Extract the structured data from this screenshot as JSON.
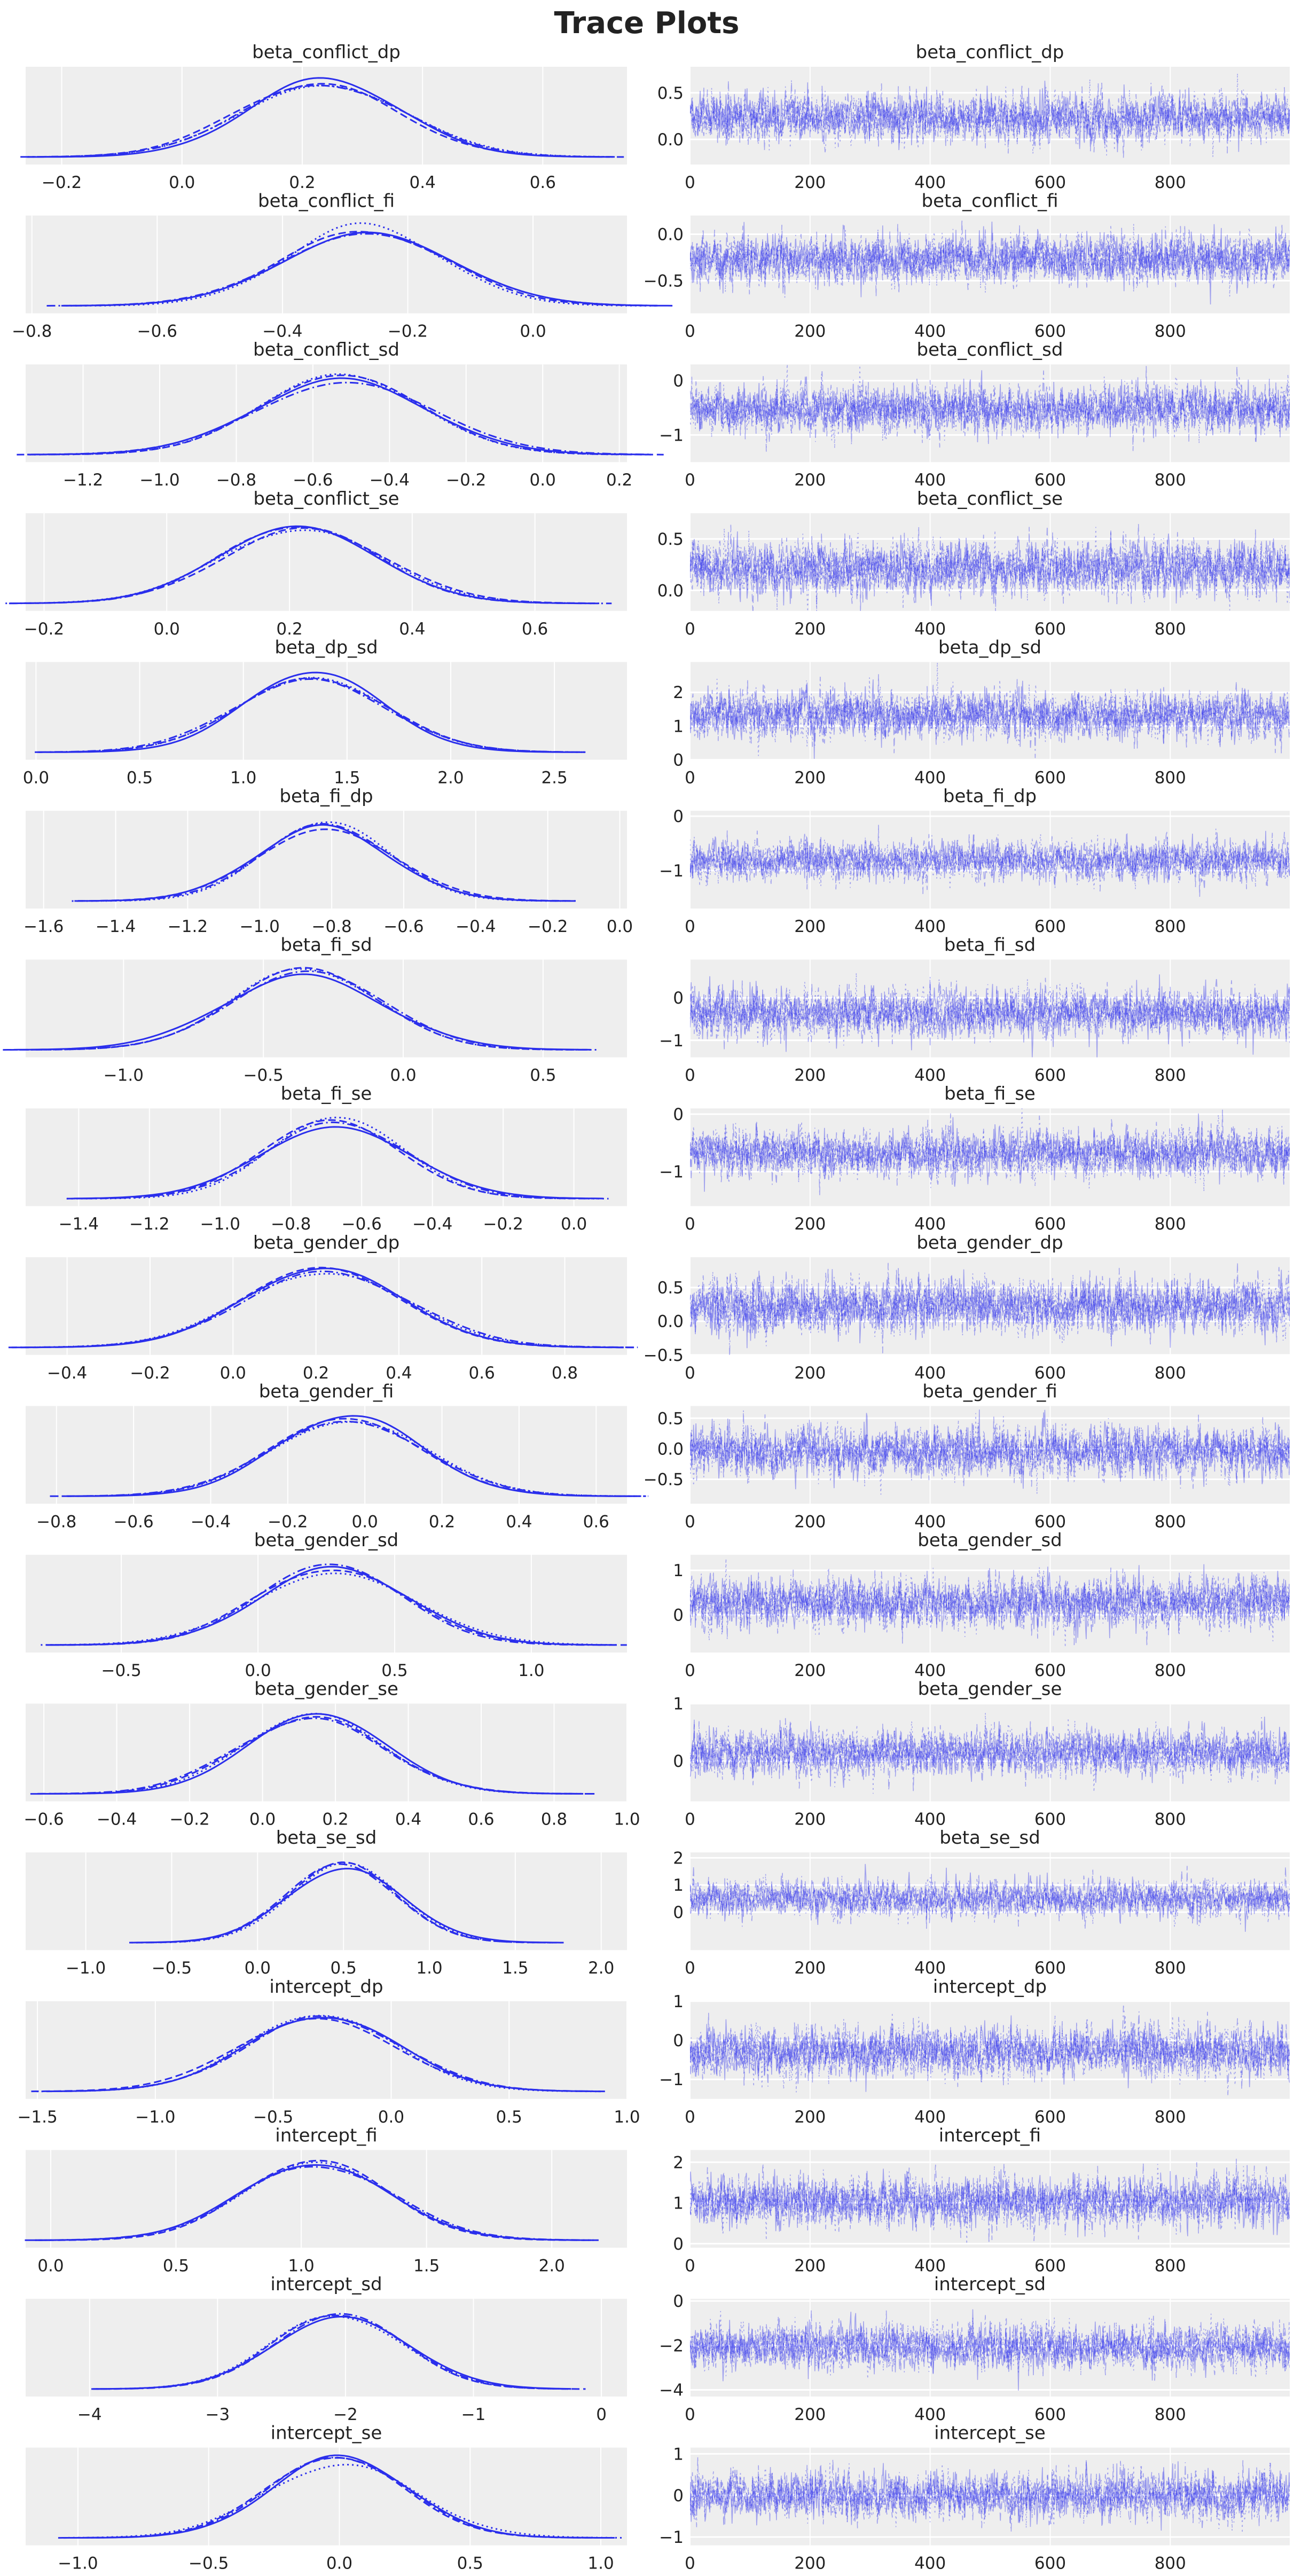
{
  "chart_data": {
    "type": "line",
    "title": "Trace Plots",
    "colors": {
      "line": "#2a2eec",
      "panel_bg": "#eeeeee",
      "grid": "#ffffff"
    },
    "chains": 4,
    "draws": 1000,
    "trace_xticks": [
      0,
      200,
      400,
      600,
      800
    ],
    "trace_xlim": [
      0,
      999
    ],
    "grid": true,
    "params": [
      {
        "name": "beta_conflict_dp",
        "mean": 0.23,
        "sd": 0.13,
        "kde_xticks": [
          -0.2,
          0.0,
          0.2,
          0.4,
          0.6
        ],
        "kde_xtick_labels": [
          "−0.2",
          "0.0",
          "0.2",
          "0.4",
          "0.6"
        ],
        "kde_xlim": [
          -0.26,
          0.74
        ],
        "trace_yticks": [
          0.0,
          0.5
        ],
        "trace_ytick_labels": [
          "0.0",
          "0.5"
        ],
        "trace_ylim": [
          -0.27,
          0.78
        ]
      },
      {
        "name": "beta_conflict_fi",
        "mean": -0.27,
        "sd": 0.13,
        "kde_xticks": [
          -0.8,
          -0.6,
          -0.4,
          -0.2,
          0.0
        ],
        "kde_xtick_labels": [
          "−0.8",
          "−0.6",
          "−0.4",
          "−0.2",
          "0.0"
        ],
        "kde_xlim": [
          -0.81,
          0.15
        ],
        "trace_yticks": [
          -0.5,
          0.0
        ],
        "trace_ytick_labels": [
          "−0.5",
          "0.0"
        ],
        "trace_ylim": [
          -0.85,
          0.2
        ]
      },
      {
        "name": "beta_conflict_sd",
        "mean": -0.52,
        "sd": 0.22,
        "kde_xticks": [
          -1.2,
          -1.0,
          -0.8,
          -0.6,
          -0.4,
          -0.2,
          0.0,
          0.2
        ],
        "kde_xtick_labels": [
          "−1.2",
          "−1.0",
          "−0.8",
          "−0.6",
          "−0.4",
          "−0.2",
          "0.0",
          "0.2"
        ],
        "kde_xlim": [
          -1.35,
          0.22
        ],
        "trace_yticks": [
          -1,
          0
        ],
        "trace_ytick_labels": [
          "−1",
          "0"
        ],
        "trace_ylim": [
          -1.5,
          0.3
        ]
      },
      {
        "name": "beta_conflict_se",
        "mean": 0.22,
        "sd": 0.13,
        "kde_xticks": [
          -0.2,
          0.0,
          0.2,
          0.4,
          0.6
        ],
        "kde_xtick_labels": [
          "−0.2",
          "0.0",
          "0.2",
          "0.4",
          "0.6"
        ],
        "kde_xlim": [
          -0.23,
          0.75
        ],
        "trace_yticks": [
          0.0,
          0.5
        ],
        "trace_ytick_labels": [
          "0.0",
          "0.5"
        ],
        "trace_ylim": [
          -0.2,
          0.75
        ]
      },
      {
        "name": "beta_dp_sd",
        "mean": 1.33,
        "sd": 0.35,
        "kde_xticks": [
          0.0,
          0.5,
          1.0,
          1.5,
          2.0,
          2.5
        ],
        "kde_xtick_labels": [
          "0.0",
          "0.5",
          "1.0",
          "1.5",
          "2.0",
          "2.5"
        ],
        "kde_xlim": [
          -0.05,
          2.85
        ],
        "trace_yticks": [
          0,
          1,
          2
        ],
        "trace_ytick_labels": [
          "0",
          "1",
          "2"
        ],
        "trace_ylim": [
          0,
          2.9
        ]
      },
      {
        "name": "beta_fi_dp",
        "mean": -0.82,
        "sd": 0.18,
        "kde_xticks": [
          -1.6,
          -1.4,
          -1.2,
          -1.0,
          -0.8,
          -0.6,
          -0.4,
          -0.2,
          0.0
        ],
        "kde_xtick_labels": [
          "−1.6",
          "−1.4",
          "−1.2",
          "−1.0",
          "−0.8",
          "−0.6",
          "−0.4",
          "−0.2",
          "0.0"
        ],
        "kde_xlim": [
          -1.65,
          0.02
        ],
        "trace_yticks": [
          -1,
          0
        ],
        "trace_ytick_labels": [
          "−1",
          "0"
        ],
        "trace_ylim": [
          -1.7,
          0.1
        ]
      },
      {
        "name": "beta_fi_sd",
        "mean": -0.35,
        "sd": 0.28,
        "kde_xticks": [
          -1.0,
          -0.5,
          0.0,
          0.5
        ],
        "kde_xtick_labels": [
          "−1.0",
          "−0.5",
          "0.0",
          "0.5"
        ],
        "kde_xlim": [
          -1.35,
          0.8
        ],
        "trace_yticks": [
          -1,
          0
        ],
        "trace_ytick_labels": [
          "−1",
          "0"
        ],
        "trace_ylim": [
          -1.4,
          0.9
        ]
      },
      {
        "name": "beta_fi_se",
        "mean": -0.68,
        "sd": 0.2,
        "kde_xticks": [
          -1.4,
          -1.2,
          -1.0,
          -0.8,
          -0.6,
          -0.4,
          -0.2,
          0.0
        ],
        "kde_xtick_labels": [
          "−1.4",
          "−1.2",
          "−1.0",
          "−0.8",
          "−0.6",
          "−0.4",
          "−0.2",
          "0.0"
        ],
        "kde_xlim": [
          -1.55,
          0.15
        ],
        "trace_yticks": [
          -1,
          0
        ],
        "trace_ytick_labels": [
          "−1",
          "0"
        ],
        "trace_ylim": [
          -1.6,
          0.1
        ]
      },
      {
        "name": "beta_gender_dp",
        "mean": 0.22,
        "sd": 0.2,
        "kde_xticks": [
          -0.4,
          -0.2,
          0.0,
          0.2,
          0.4,
          0.6,
          0.8
        ],
        "kde_xtick_labels": [
          "−0.4",
          "−0.2",
          "0.0",
          "0.2",
          "0.4",
          "0.6",
          "0.8"
        ],
        "kde_xlim": [
          -0.5,
          0.95
        ],
        "trace_yticks": [
          -0.5,
          0.0,
          0.5
        ],
        "trace_ytick_labels": [
          "−0.5",
          "0.0",
          "0.5"
        ],
        "trace_ylim": [
          -0.5,
          0.95
        ]
      },
      {
        "name": "beta_gender_fi",
        "mean": -0.04,
        "sd": 0.2,
        "kde_xticks": [
          -0.8,
          -0.6,
          -0.4,
          -0.2,
          0.0,
          0.2,
          0.4,
          0.6
        ],
        "kde_xtick_labels": [
          "−0.8",
          "−0.6",
          "−0.4",
          "−0.2",
          "0.0",
          "0.2",
          "0.4",
          "0.6"
        ],
        "kde_xlim": [
          -0.88,
          0.68
        ],
        "trace_yticks": [
          -0.5,
          0.0,
          0.5
        ],
        "trace_ytick_labels": [
          "−0.5",
          "0.0",
          "0.5"
        ],
        "trace_ylim": [
          -0.9,
          0.7
        ]
      },
      {
        "name": "beta_gender_sd",
        "mean": 0.27,
        "sd": 0.28,
        "kde_xticks": [
          -0.5,
          0.0,
          0.5,
          1.0
        ],
        "kde_xtick_labels": [
          "−0.5",
          "0.0",
          "0.5",
          "1.0"
        ],
        "kde_xlim": [
          -0.85,
          1.35
        ],
        "trace_yticks": [
          0,
          1
        ],
        "trace_ytick_labels": [
          "0",
          "1"
        ],
        "trace_ylim": [
          -0.85,
          1.35
        ]
      },
      {
        "name": "beta_gender_se",
        "mean": 0.14,
        "sd": 0.2,
        "kde_xticks": [
          -0.6,
          -0.4,
          -0.2,
          0.0,
          0.2,
          0.4,
          0.6,
          0.8,
          1.0
        ],
        "kde_xtick_labels": [
          "−0.6",
          "−0.4",
          "−0.2",
          "0.0",
          "0.2",
          "0.4",
          "0.6",
          "0.8",
          "1.0"
        ],
        "kde_xlim": [
          -0.65,
          1.0
        ],
        "trace_yticks": [
          0,
          1
        ],
        "trace_ytick_labels": [
          "0",
          "1"
        ],
        "trace_ylim": [
          -0.7,
          1.0
        ]
      },
      {
        "name": "beta_se_sd",
        "mean": 0.5,
        "sd": 0.33,
        "kde_xticks": [
          -1.0,
          -0.5,
          0.0,
          0.5,
          1.0,
          1.5,
          2.0
        ],
        "kde_xtick_labels": [
          "−1.0",
          "−0.5",
          "0.0",
          "0.5",
          "1.0",
          "1.5",
          "2.0"
        ],
        "kde_xlim": [
          -1.35,
          2.15
        ],
        "trace_yticks": [
          0,
          1,
          2
        ],
        "trace_ytick_labels": [
          "0",
          "1",
          "2"
        ],
        "trace_ylim": [
          -1.4,
          2.2
        ]
      },
      {
        "name": "intercept_dp",
        "mean": -0.3,
        "sd": 0.32,
        "kde_xticks": [
          -1.5,
          -1.0,
          -0.5,
          0.0,
          0.5,
          1.0
        ],
        "kde_xtick_labels": [
          "−1.5",
          "−1.0",
          "−0.5",
          "0.0",
          "0.5",
          "1.0"
        ],
        "kde_xlim": [
          -1.55,
          1.0
        ],
        "trace_yticks": [
          -1,
          0,
          1
        ],
        "trace_ytick_labels": [
          "−1",
          "0",
          "1"
        ],
        "trace_ylim": [
          -1.5,
          1.0
        ]
      },
      {
        "name": "intercept_fi",
        "mean": 1.05,
        "sd": 0.3,
        "kde_xticks": [
          0.0,
          0.5,
          1.0,
          1.5,
          2.0
        ],
        "kde_xtick_labels": [
          "0.0",
          "0.5",
          "1.0",
          "1.5",
          "2.0"
        ],
        "kde_xlim": [
          -0.1,
          2.3
        ],
        "trace_yticks": [
          0,
          1,
          2
        ],
        "trace_ytick_labels": [
          "0",
          "1",
          "2"
        ],
        "trace_ylim": [
          -0.1,
          2.3
        ]
      },
      {
        "name": "intercept_sd",
        "mean": -2.05,
        "sd": 0.5,
        "kde_xticks": [
          -4,
          -3,
          -2,
          -1,
          0
        ],
        "kde_xtick_labels": [
          "−4",
          "−3",
          "−2",
          "−1",
          "0"
        ],
        "kde_xlim": [
          -4.5,
          0.2
        ],
        "trace_yticks": [
          -4,
          -2,
          0
        ],
        "trace_ytick_labels": [
          "−4",
          "−2",
          "0"
        ],
        "trace_ylim": [
          -4.3,
          0.1
        ]
      },
      {
        "name": "intercept_se",
        "mean": 0.0,
        "sd": 0.28,
        "kde_xticks": [
          -1.0,
          -0.5,
          0.0,
          0.5,
          1.0
        ],
        "kde_xtick_labels": [
          "−1.0",
          "−0.5",
          "0.0",
          "0.5",
          "1.0"
        ],
        "kde_xlim": [
          -1.2,
          1.1
        ],
        "trace_yticks": [
          -1,
          0,
          1
        ],
        "trace_ytick_labels": [
          "−1",
          "0",
          "1"
        ],
        "trace_ylim": [
          -1.2,
          1.15
        ]
      }
    ]
  }
}
